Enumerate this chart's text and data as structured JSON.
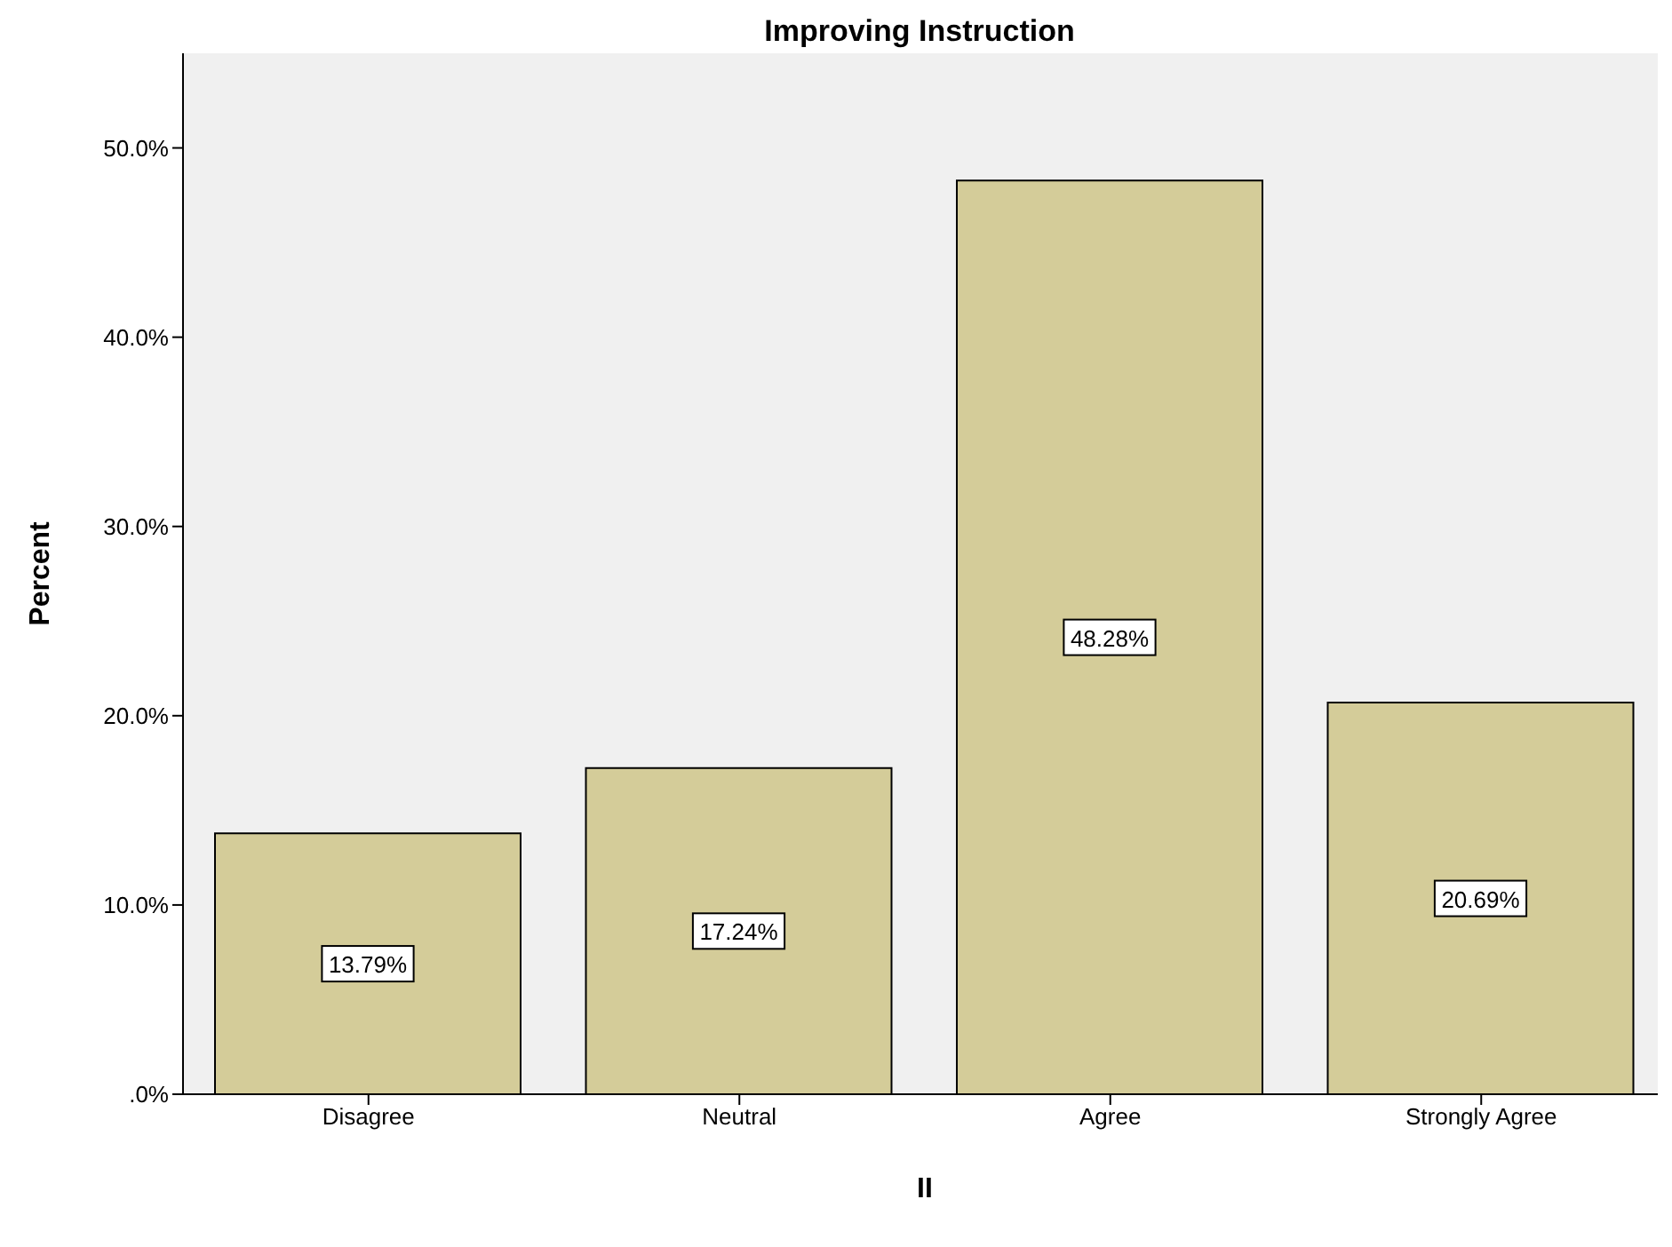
{
  "chart_data": {
    "type": "bar",
    "title": "Improving Instruction",
    "xlabel": "II",
    "ylabel": "Percent",
    "categories": [
      "Disagree",
      "Neutral",
      "Agree",
      "Strongly Agree"
    ],
    "values": [
      13.79,
      17.24,
      48.28,
      20.69
    ],
    "value_labels": [
      "13.79%",
      "17.24%",
      "48.28%",
      "20.69%"
    ],
    "color": "#d4cc99",
    "ylim": [
      0,
      55
    ],
    "yticks": [
      {
        "value": 0,
        "label": ".0%"
      },
      {
        "value": 10,
        "label": "10.0%"
      },
      {
        "value": 20,
        "label": "20.0%"
      },
      {
        "value": 30,
        "label": "30.0%"
      },
      {
        "value": 40,
        "label": "40.0%"
      },
      {
        "value": 50,
        "label": "50.0%"
      }
    ],
    "grid": false,
    "legend": false
  }
}
